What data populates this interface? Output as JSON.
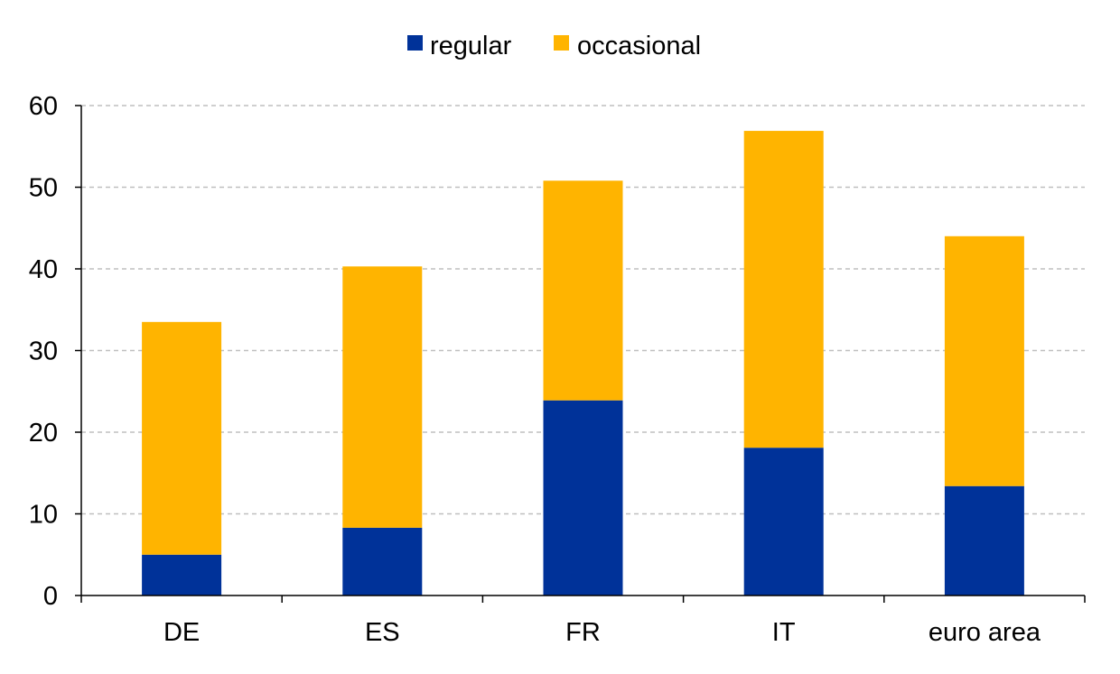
{
  "chart_data": {
    "type": "bar",
    "stacked": true,
    "title": "",
    "xlabel": "",
    "ylabel": "",
    "categories": [
      "DE",
      "ES",
      "FR",
      "IT",
      "euro area"
    ],
    "series": [
      {
        "name": "regular",
        "color": "#003299",
        "values": [
          5.0,
          8.3,
          23.9,
          18.1,
          13.4
        ]
      },
      {
        "name": "occasional",
        "color": "#FFB400",
        "values": [
          28.5,
          32.0,
          26.9,
          38.8,
          30.6
        ]
      }
    ],
    "ylim": [
      0,
      60
    ],
    "yticks": [
      "0",
      "10",
      "20",
      "30",
      "40",
      "50",
      "60"
    ],
    "grid": true,
    "legend_position": "top-center"
  }
}
